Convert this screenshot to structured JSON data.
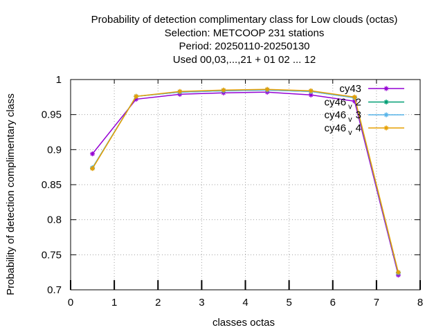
{
  "chart_data": {
    "type": "line",
    "title_lines": [
      "Probability of detection complimentary class  for Low clouds (octas)",
      "Selection: METCOOP    231 stations",
      "Period: 20250110-20250130",
      "Used  00,03,...,21  + 01 02 ... 12"
    ],
    "xlabel": "classes octas",
    "ylabel": "Probability of detection complimentary class",
    "xlim": [
      0,
      8
    ],
    "ylim": [
      0.7,
      1.0
    ],
    "xticks": [
      0,
      1,
      2,
      3,
      4,
      5,
      6,
      7,
      8
    ],
    "xtick_labels": [
      "0",
      "1",
      "2",
      "3",
      "4",
      "5",
      "6",
      "7",
      "8"
    ],
    "yticks": [
      0.7,
      0.75,
      0.8,
      0.85,
      0.9,
      0.95,
      1.0
    ],
    "ytick_labels": [
      "0.7",
      "0.75",
      "0.8",
      "0.85",
      "0.9",
      "0.95",
      "1"
    ],
    "grid": true,
    "legend_position": "top-right",
    "x": [
      0.5,
      1.5,
      2.5,
      3.5,
      4.5,
      5.5,
      6.5,
      7.5
    ],
    "series": [
      {
        "name": "cy43",
        "label_main": "cy43",
        "label_sub": "",
        "label_rest": "",
        "color": "#9400d3",
        "values": [
          0.894,
          0.972,
          0.979,
          0.981,
          0.982,
          0.978,
          0.969,
          0.721
        ]
      },
      {
        "name": "cy46_v2",
        "label_main": "cy46",
        "label_sub": "v",
        "label_rest": "2",
        "color": "#009e73",
        "values": [
          0.874,
          0.976,
          0.982,
          0.984,
          0.985,
          0.983,
          0.974,
          0.724
        ]
      },
      {
        "name": "cy46_v3",
        "label_main": "cy46",
        "label_sub": "v",
        "label_rest": "3",
        "color": "#56b4e9",
        "values": [
          0.874,
          0.976,
          0.982,
          0.984,
          0.985,
          0.983,
          0.974,
          0.724
        ]
      },
      {
        "name": "cy46_v4",
        "label_main": "cy46",
        "label_sub": "v",
        "label_rest": "4",
        "color": "#e69f00",
        "values": [
          0.873,
          0.976,
          0.983,
          0.985,
          0.986,
          0.984,
          0.975,
          0.725
        ]
      }
    ]
  }
}
